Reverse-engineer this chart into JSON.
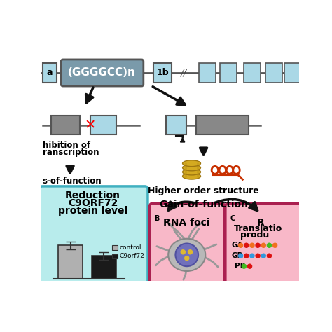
{
  "bg_color": "#ffffff",
  "gene_box_color": "#aad8e6",
  "repeat_box_facecolor": "#7a9aaa",
  "repeat_box_edgecolor": "#555555",
  "repeat_text": "(GGGGCC)n",
  "exon1a_text": "a",
  "exon1b_text": "1b",
  "arrow_color": "#111111",
  "inhibition_text1": "hibition of",
  "inhibition_text2": "ranscription",
  "lof_text": "s-of-function",
  "box_a_bg": "#b8ecec",
  "box_a_border": "#40b0c0",
  "box_a_title1": "Reduction",
  "box_a_title2": "C9ORF72",
  "box_a_title3": "protein level",
  "bar_control_color": "#b0b0b0",
  "bar_c9_color": "#1a1a1a",
  "legend_control": "control",
  "legend_c9": "C9orf72",
  "higher_order_text": "Higher order structure",
  "gof_text": "Gain-of-function",
  "box_b_bg": "#f8b8c8",
  "box_b_border": "#aa2050",
  "box_b_label": "B",
  "box_b_title": "RNA foci",
  "box_c_bg": "#f8b8c8",
  "box_c_border": "#aa2050",
  "box_c_label": "C",
  "box_c_title1": "R",
  "box_c_title2": "Translatio",
  "box_c_title3": "produ",
  "ga_label": "GA",
  "gr_label": "GR",
  "pr_label": "PR",
  "dot_red": "#dd1111",
  "dot_orange": "#f07020",
  "dot_green": "#44bb22",
  "dot_blue": "#3399dd",
  "neuron_body_color": "#b0b0b0",
  "neuron_nucleus_color": "#7070bb",
  "neuron_spot_color": "#ddb830",
  "gquad_color": "#d4aa20",
  "rna_color": "#c83000"
}
